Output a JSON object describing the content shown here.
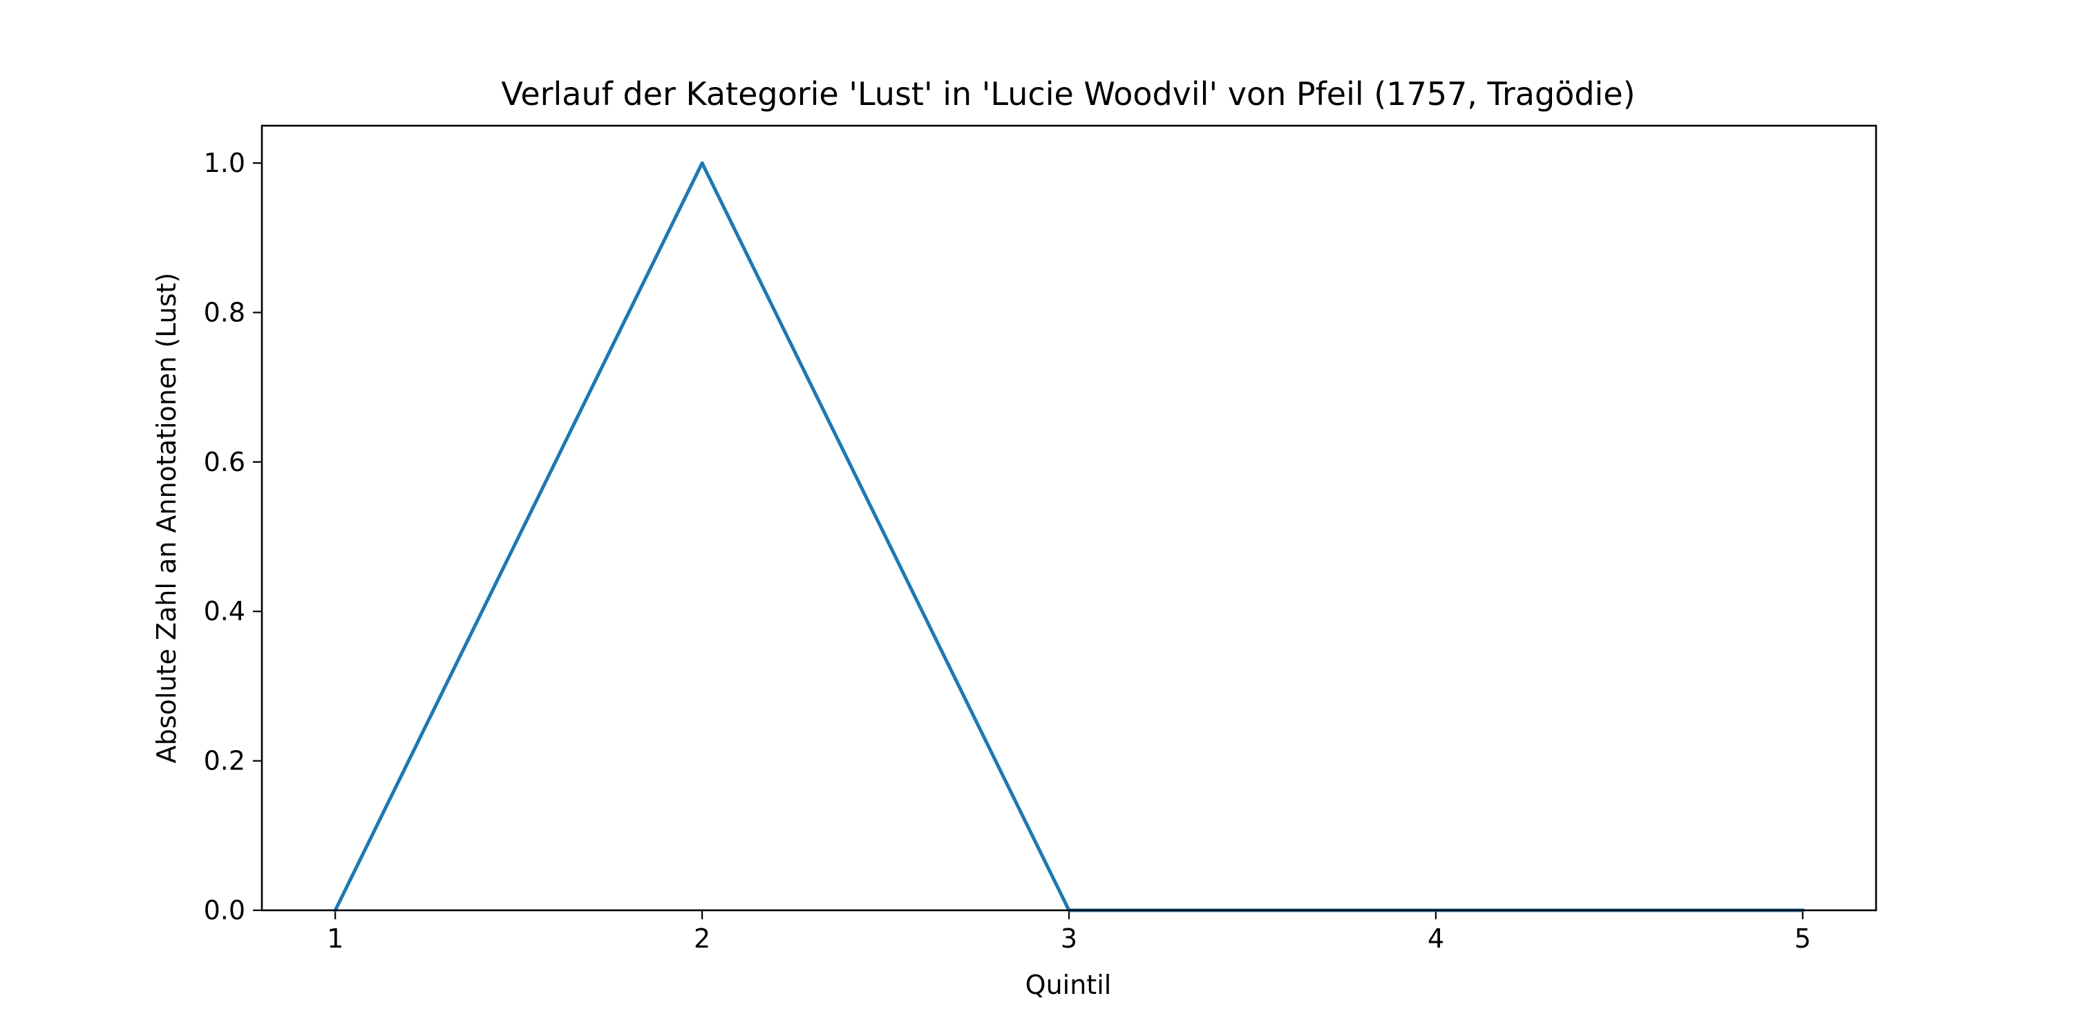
{
  "chart_data": {
    "type": "line",
    "title": "Verlauf der Kategorie 'Lust' in 'Lucie Woodvil' von Pfeil (1757, Tragödie)",
    "xlabel": "Quintil",
    "ylabel": "Absolute Zahl an Annotationen (Lust)",
    "x": [
      1,
      2,
      3,
      4,
      5
    ],
    "series": [
      {
        "values": [
          0,
          1,
          0,
          0,
          0
        ]
      }
    ],
    "xlim": [
      0.8,
      5.2
    ],
    "ylim": [
      0,
      1.05
    ],
    "xticks": [
      1,
      2,
      3,
      4,
      5
    ],
    "xtick_labels": [
      "1",
      "2",
      "3",
      "4",
      "5"
    ],
    "yticks": [
      0,
      0.2,
      0.4,
      0.6,
      0.8,
      1.0
    ],
    "ytick_labels": [
      "0.0",
      "0.2",
      "0.4",
      "0.6",
      "0.8",
      "1.0"
    ],
    "grid": false,
    "legend": "none",
    "colors": {
      "line": "#1f77b4",
      "axes": "#000000",
      "background": "#ffffff"
    }
  }
}
